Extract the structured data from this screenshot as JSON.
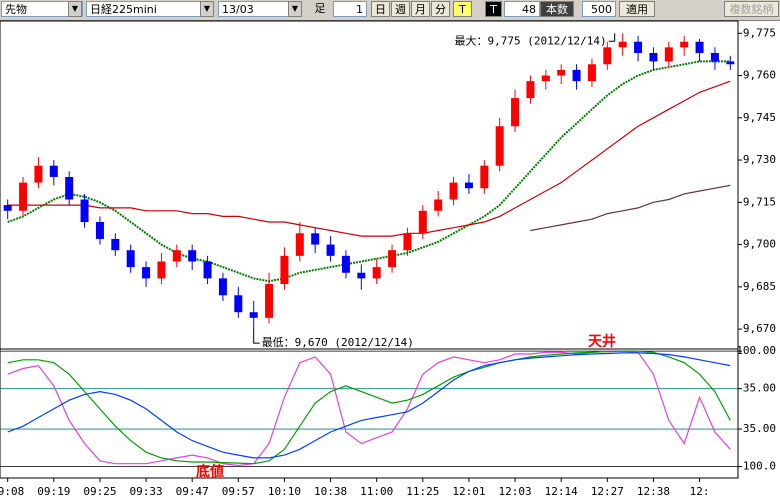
{
  "toolbar": {
    "market": "先物",
    "product": "日経225mini",
    "contract": "13/03",
    "bar_label": "足",
    "interval": "1",
    "day": "日",
    "week": "週",
    "month": "月",
    "minute": "分",
    "tick": "T",
    "tick2": "T",
    "tick_count": "48",
    "count_label": "本数",
    "count": "500",
    "apply": "適用",
    "multi": "複数銘柄"
  },
  "chart_data": [
    {
      "type": "candlestick",
      "categories": [
        "09:08",
        null,
        null,
        "09:19",
        null,
        null,
        "09:25",
        null,
        null,
        "09:33",
        null,
        null,
        "09:47",
        null,
        null,
        "09:57",
        null,
        null,
        "10:10",
        null,
        null,
        "10:38",
        null,
        null,
        "11:00",
        null,
        null,
        "11:25",
        null,
        null,
        "12:01",
        null,
        null,
        "12:03",
        null,
        null,
        "12:14",
        null,
        null,
        "12:27",
        null,
        null,
        "12:38",
        null,
        null,
        "12:",
        null,
        null
      ],
      "open": [
        9714,
        9712,
        9722,
        9728,
        9724,
        9716,
        9708,
        9702,
        9698,
        9692,
        9688,
        9694,
        9698,
        9694,
        9688,
        9682,
        9676,
        9674,
        9686,
        9696,
        9704,
        9700,
        9696,
        9690,
        9688,
        9692,
        9698,
        9704,
        9712,
        9716,
        9722,
        9720,
        9728,
        9742,
        9752,
        9758,
        9760,
        9762,
        9758,
        9764,
        9770,
        9772,
        9768,
        9765,
        9770,
        9772,
        9768,
        9765
      ],
      "high": [
        9716,
        9724,
        9731,
        9730,
        9726,
        9718,
        9710,
        9704,
        9700,
        9694,
        9697,
        9700,
        9700,
        9696,
        9690,
        9685,
        9680,
        9690,
        9699,
        9708,
        9706,
        9703,
        9698,
        9693,
        9695,
        9700,
        9706,
        9714,
        9719,
        9724,
        9725,
        9730,
        9745,
        9755,
        9760,
        9762,
        9764,
        9764,
        9766,
        9772,
        9775,
        9774,
        9770,
        9772,
        9774,
        9773,
        9770,
        9767
      ],
      "low": [
        9709,
        9710,
        9720,
        9721,
        9714,
        9706,
        9700,
        9696,
        9690,
        9685,
        9686,
        9692,
        9691,
        9686,
        9680,
        9674,
        9670,
        9672,
        9684,
        9694,
        9697,
        9694,
        9688,
        9684,
        9686,
        9690,
        9696,
        9702,
        9710,
        9714,
        9718,
        9718,
        9726,
        9740,
        9750,
        9755,
        9757,
        9755,
        9756,
        9762,
        9767,
        9765,
        9762,
        9763,
        9767,
        9765,
        9762,
        9762
      ],
      "close": [
        9712,
        9722,
        9728,
        9724,
        9716,
        9708,
        9702,
        9698,
        9692,
        9688,
        9694,
        9698,
        9694,
        9688,
        9682,
        9676,
        9674,
        9686,
        9696,
        9704,
        9700,
        9696,
        9690,
        9688,
        9692,
        9698,
        9704,
        9712,
        9716,
        9722,
        9720,
        9728,
        9742,
        9752,
        9758,
        9760,
        9762,
        9758,
        9764,
        9770,
        9772,
        9768,
        9765,
        9770,
        9772,
        9768,
        9765,
        9764
      ],
      "up_color": "#ff0000",
      "down_color": "#0000ff",
      "series": [
        {
          "color": "#008000",
          "values": [
            9708,
            9710,
            9713,
            9716,
            9718,
            9717,
            9715,
            9712,
            9708,
            9704,
            9700,
            9697,
            9695,
            9694,
            9692,
            9690,
            9688,
            9687,
            9688,
            9690,
            9691,
            9692,
            9693,
            9694,
            9695,
            9696,
            9697,
            9699,
            9701,
            9704,
            9707,
            9710,
            9714,
            9720,
            9726,
            9732,
            9738,
            9743,
            9748,
            9753,
            9757,
            9760,
            9762,
            9763,
            9764,
            9765,
            9765,
            9765
          ]
        },
        {
          "color": "#cc0000",
          "values": [
            9714,
            9714,
            9714,
            9714,
            9714,
            9714,
            9713,
            9713,
            9713,
            9712,
            9712,
            9712,
            9711,
            9711,
            9710,
            9710,
            9709,
            9708,
            9708,
            9707,
            9706,
            9705,
            9704,
            9703,
            9703,
            9703,
            9704,
            9704,
            9705,
            9706,
            9707,
            9708,
            9710,
            9713,
            9716,
            9719,
            9722,
            9726,
            9730,
            9734,
            9738,
            9742,
            9745,
            9748,
            9751,
            9754,
            9756,
            9758
          ]
        },
        {
          "color": "#663333",
          "values": [
            null,
            null,
            null,
            null,
            null,
            null,
            null,
            null,
            null,
            null,
            null,
            null,
            null,
            null,
            null,
            null,
            null,
            null,
            null,
            null,
            null,
            null,
            null,
            null,
            null,
            null,
            null,
            null,
            null,
            null,
            null,
            null,
            null,
            null,
            9705,
            9706,
            9707,
            9708,
            9709,
            9711,
            9712,
            9713,
            9715,
            9716,
            9718,
            9719,
            9720,
            9721
          ]
        }
      ],
      "ylim": [
        9664,
        9779
      ],
      "yticks": [
        {
          "value": 9670,
          "label": "9,670"
        },
        {
          "value": 9685,
          "label": "9,685"
        },
        {
          "value": 9700,
          "label": "9,700"
        },
        {
          "value": 9715,
          "label": "9,715"
        },
        {
          "value": 9730,
          "label": "9,730"
        },
        {
          "value": 9745,
          "label": "9,745"
        },
        {
          "value": 9760,
          "label": "9,760"
        },
        {
          "value": 9775,
          "label": "9,775"
        }
      ],
      "max_annotation": "最大：9,775 (2012/12/14)",
      "min_annotation": "最低：9,670 (2012/12/14)"
    },
    {
      "type": "line",
      "series": [
        {
          "color": "#e040e0",
          "values": [
            60,
            70,
            75,
            40,
            -20,
            -60,
            -90,
            -95,
            -95,
            -95,
            -90,
            -85,
            -80,
            -85,
            -95,
            -98,
            -95,
            -60,
            20,
            80,
            90,
            60,
            -40,
            -60,
            -50,
            -40,
            0,
            60,
            80,
            90,
            85,
            80,
            85,
            95,
            95,
            98,
            98,
            95,
            98,
            100,
            100,
            98,
            60,
            -20,
            -60,
            20,
            -40,
            -70
          ]
        },
        {
          "color": "#00a000",
          "values": [
            80,
            85,
            85,
            80,
            60,
            30,
            0,
            -30,
            -55,
            -75,
            -85,
            -90,
            -92,
            -92,
            -93,
            -94,
            -95,
            -90,
            -70,
            -30,
            10,
            30,
            40,
            30,
            20,
            10,
            15,
            25,
            40,
            55,
            65,
            72,
            80,
            85,
            90,
            93,
            95,
            97,
            98,
            99,
            100,
            100,
            98,
            90,
            80,
            60,
            30,
            -20
          ]
        },
        {
          "color": "#0040ff",
          "values": [
            -40,
            -30,
            -15,
            0,
            15,
            25,
            30,
            25,
            15,
            0,
            -20,
            -40,
            -55,
            -65,
            -75,
            -80,
            -85,
            -85,
            -80,
            -70,
            -55,
            -40,
            -30,
            -20,
            -15,
            -10,
            -5,
            10,
            30,
            50,
            65,
            75,
            80,
            85,
            88,
            90,
            92,
            94,
            95,
            96,
            97,
            97,
            96,
            94,
            90,
            85,
            80,
            75
          ]
        }
      ],
      "ylim": [
        -118,
        102
      ],
      "yticks": [
        {
          "value": -100,
          "label": "-100.0"
        },
        {
          "value": -35,
          "label": "-35.00"
        },
        {
          "value": 35,
          "label": "35.00"
        },
        {
          "value": 100,
          "label": "100.00"
        }
      ],
      "top_annotation": "天井",
      "bottom_annotation": "底値"
    }
  ]
}
